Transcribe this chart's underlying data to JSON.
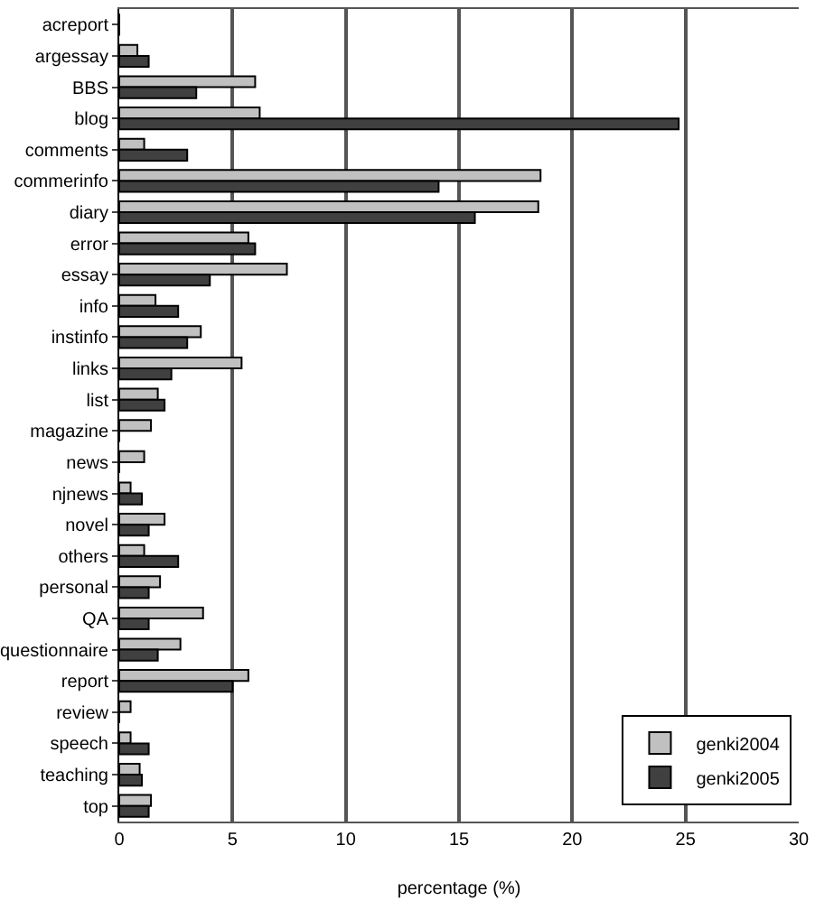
{
  "chart_data": {
    "type": "bar",
    "orientation": "horizontal",
    "xlabel": "percentage (%)",
    "categories": [
      "acreport",
      "argessay",
      "BBS",
      "blog",
      "comments",
      "commerinfo",
      "diary",
      "error",
      "essay",
      "info",
      "instinfo",
      "links",
      "list",
      "magazine",
      "news",
      "njnews",
      "novel",
      "others",
      "personal",
      "QA",
      "questionnaire",
      "report",
      "review",
      "speech",
      "teaching",
      "top"
    ],
    "series": [
      {
        "name": "genki2004",
        "color": "#c0c0c0",
        "values": [
          0,
          0.8,
          6.0,
          6.2,
          1.1,
          18.6,
          18.5,
          5.7,
          7.4,
          1.6,
          3.6,
          5.4,
          1.7,
          1.4,
          1.1,
          0.5,
          2.0,
          1.1,
          1.8,
          3.7,
          2.7,
          5.7,
          0.5,
          0.5,
          0.9,
          1.4
        ]
      },
      {
        "name": "genki2005",
        "color": "#404040",
        "values": [
          0,
          1.3,
          3.4,
          24.7,
          3.0,
          14.1,
          15.7,
          6.0,
          4.0,
          2.6,
          3.0,
          2.3,
          2.0,
          0,
          0,
          1.0,
          1.3,
          2.6,
          1.3,
          1.3,
          1.7,
          5.0,
          0,
          1.3,
          1.0,
          1.3
        ]
      }
    ],
    "xlim": [
      0,
      30
    ],
    "xticks": [
      0,
      5,
      10,
      15,
      20,
      25,
      30
    ],
    "grid": "x",
    "legend": "bottom right"
  }
}
